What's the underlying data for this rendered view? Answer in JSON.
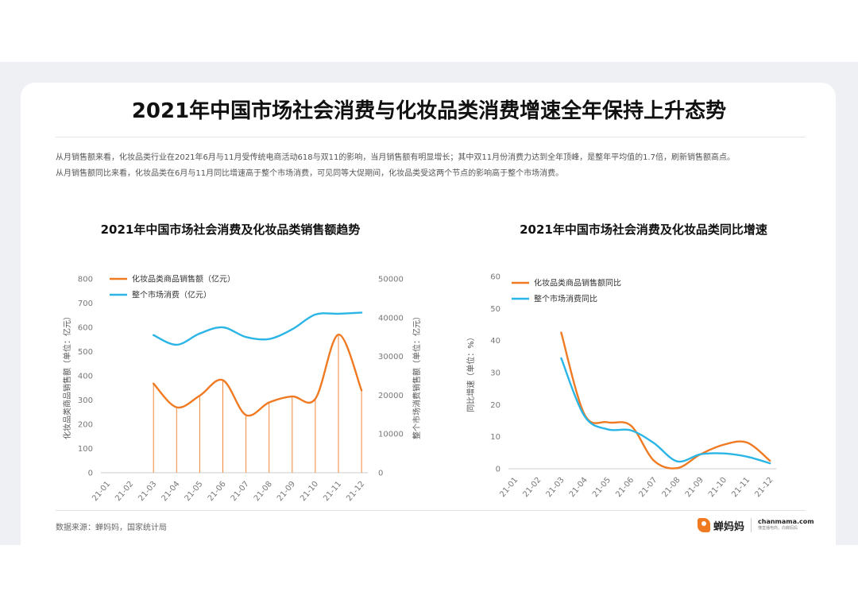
{
  "title": "2021年中国市场社会消费与化妆品类消费增速全年保持上升态势",
  "paragraph1": "从月销售额来看，化妆品类行业在2021年6月与11月受传统电商活动618与双11的影响，当月销售额有明显增长；其中双11月份消费力达到全年顶峰，是整年平均值的1.7倍，刷新销售额高点。",
  "paragraph2": "从月销售额同比来看，化妆品类在6月与11月同比增速高于整个市场消费，可见同等大促期间，化妆品类受这两个节点的影响高于整个市场消费。",
  "source": "数据来源：蝉妈妈，国家统计局",
  "brand": {
    "name": "蝉妈妈",
    "domain": "chanmama.com",
    "tagline": "懂直播电商，向蝉妈妈"
  },
  "colors": {
    "orange": "#f07a22",
    "blue": "#2bb5e6",
    "axis_text": "#777777"
  },
  "chart_data": [
    {
      "type": "line",
      "title": "2021年中国市场社会消费及化妆品类销售额趋势",
      "categories": [
        "21-01",
        "21-02",
        "21-03",
        "21-04",
        "21-05",
        "21-06",
        "21-07",
        "21-08",
        "21-09",
        "21-10",
        "21-11",
        "21-12"
      ],
      "series": [
        {
          "name": "化妆品类商品销售额（亿元）",
          "axis": "left",
          "color": "#f07a22",
          "drop_lines": true,
          "values": [
            null,
            null,
            368,
            270,
            318,
            382,
            238,
            290,
            315,
            305,
            570,
            340
          ]
        },
        {
          "name": "整个市场消费（亿元）",
          "axis": "right",
          "color": "#2bb5e6",
          "values": [
            null,
            null,
            35500,
            33000,
            35900,
            37500,
            35000,
            34500,
            37000,
            40800,
            41000,
            41300
          ]
        }
      ],
      "ylabel": "化妆品类商品销售额（单位：亿元）",
      "ylim": [
        0,
        800
      ],
      "yticks": [
        "0",
        "100",
        "200",
        "300",
        "400",
        "500",
        "600",
        "700",
        "800"
      ],
      "y2label": "整个市场消费销售额（单位：亿元）",
      "y2lim": [
        0,
        50000
      ],
      "y2ticks": [
        "0",
        "10000",
        "20000",
        "30000",
        "40000",
        "50000"
      ],
      "grid": false,
      "legend": "top-left"
    },
    {
      "type": "line",
      "title": "2021年中国市场社会消费及化妆品类同比增速",
      "categories": [
        "21-01",
        "21-02",
        "21-03",
        "21-04",
        "21-05",
        "21-06",
        "21-07",
        "21-08",
        "21-09",
        "21-10",
        "21-11",
        "21-12"
      ],
      "series": [
        {
          "name": "化妆品类商品销售额同比",
          "color": "#f07a22",
          "values": [
            null,
            null,
            42.5,
            17,
            14.5,
            13.5,
            2.5,
            0.2,
            4.5,
            7.5,
            8.2,
            2.5
          ]
        },
        {
          "name": "整个市场消费同比",
          "color": "#2bb5e6",
          "values": [
            null,
            null,
            34.5,
            16.5,
            12.3,
            12.0,
            8.0,
            2.3,
            4.5,
            4.8,
            3.8,
            1.7
          ]
        }
      ],
      "ylabel": "同比增速（单位：%）",
      "ylim": [
        0,
        60
      ],
      "yticks": [
        "0",
        "10",
        "20",
        "30",
        "40",
        "50",
        "60"
      ],
      "grid": false,
      "legend": "top-left"
    }
  ]
}
